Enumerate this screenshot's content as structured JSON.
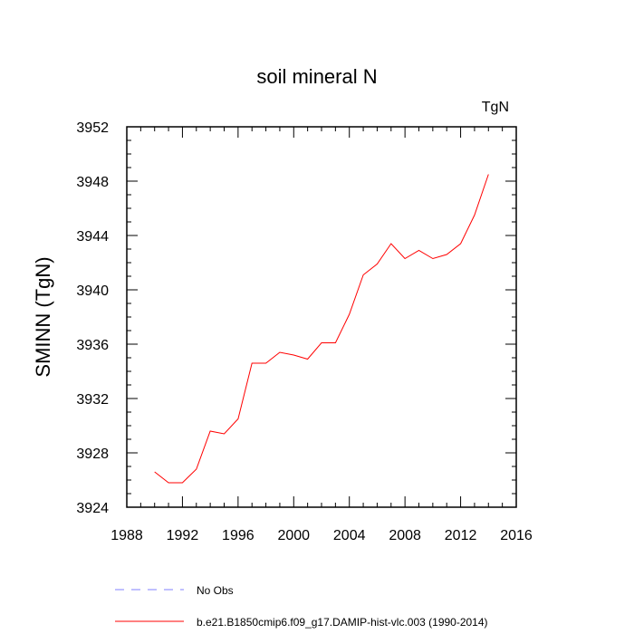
{
  "chart_data": {
    "type": "line",
    "title": "soil mineral N",
    "units_label": "TgN",
    "ylabel": "SMINN  (TgN)",
    "xlabel": "",
    "xlim": [
      1988,
      2016
    ],
    "ylim": [
      3924,
      3952
    ],
    "x_ticks": [
      "1988",
      "1992",
      "1996",
      "2000",
      "2004",
      "2008",
      "2012",
      "2016"
    ],
    "y_ticks": [
      "3924",
      "3928",
      "3932",
      "3936",
      "3940",
      "3944",
      "3948",
      "3952"
    ],
    "series": [
      {
        "name": "b.e21.B1850cmip6.f09_g17.DAMIP-hist-vlc.003 (1990-2014)",
        "color": "#ff0000",
        "x": [
          1990,
          1991,
          1992,
          1993,
          1994,
          1995,
          1996,
          1997,
          1998,
          1999,
          2000,
          2001,
          2002,
          2003,
          2004,
          2005,
          2006,
          2007,
          2008,
          2009,
          2010,
          2011,
          2012,
          2013,
          2014
        ],
        "values": [
          3926.6,
          3925.8,
          3925.8,
          3926.8,
          3929.6,
          3929.4,
          3930.5,
          3934.6,
          3934.6,
          3935.4,
          3935.2,
          3934.9,
          3936.1,
          3936.1,
          3938.2,
          3941.1,
          3941.9,
          3943.4,
          3942.3,
          3942.9,
          3942.3,
          3942.6,
          3943.4,
          3945.5,
          3948.5
        ]
      }
    ],
    "legend": [
      {
        "label": "No Obs",
        "color": "#8080ff",
        "style": "dashed"
      },
      {
        "label": "b.e21.B1850cmip6.f09_g17.DAMIP-hist-vlc.003 (1990-2014)",
        "color": "#ff0000",
        "style": "solid"
      }
    ]
  }
}
